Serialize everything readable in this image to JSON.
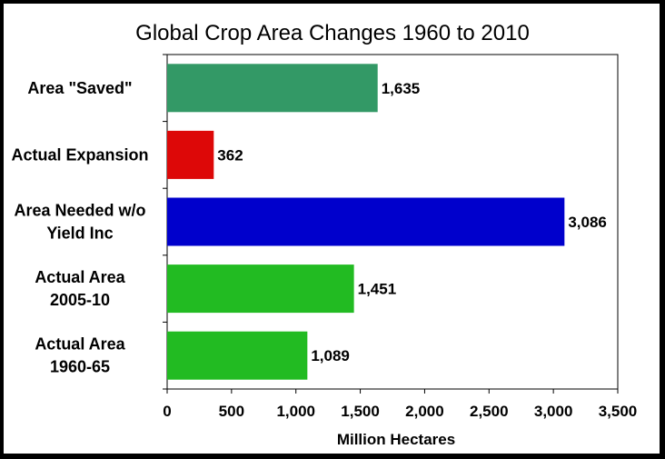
{
  "chart_data": {
    "type": "bar",
    "orientation": "horizontal",
    "title": "Global Crop Area Changes 1960 to 2010",
    "xlabel": "Million Hectares",
    "ylabel": "",
    "xlim": [
      0,
      3500
    ],
    "x_ticks": [
      0,
      500,
      1000,
      1500,
      2000,
      2500,
      3000,
      3500
    ],
    "x_tick_labels": [
      "0",
      "500",
      "1,000",
      "1,500",
      "2,000",
      "2,500",
      "3,000",
      "3,500"
    ],
    "grid": false,
    "legend": "none",
    "categories": [
      [
        "Area \"Saved\""
      ],
      [
        "Actual Expansion"
      ],
      [
        "Area Needed w/o",
        "Yield Inc"
      ],
      [
        "Actual Area",
        "2005-10"
      ],
      [
        "Actual Area",
        "1960-65"
      ]
    ],
    "values": [
      1635,
      362,
      3086,
      1451,
      1089
    ],
    "value_labels": [
      "1,635",
      "362",
      "3,086",
      "1,451",
      "1,089"
    ],
    "colors": [
      "#339966",
      "#dd0808",
      "#0000cc",
      "#22bb22",
      "#22bb22"
    ]
  }
}
